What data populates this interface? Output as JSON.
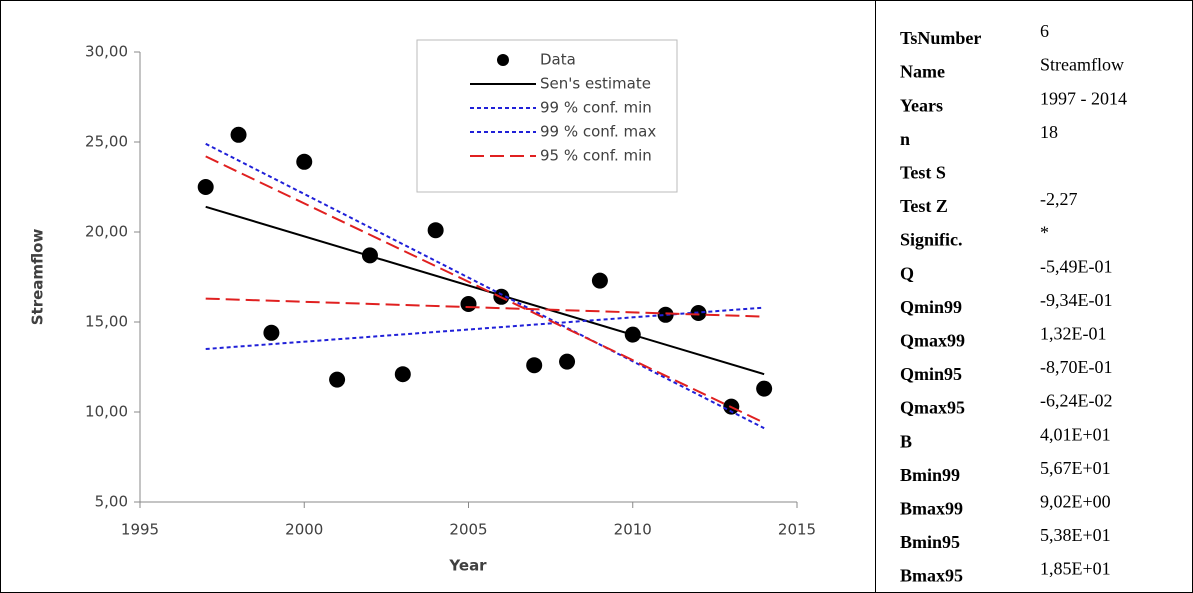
{
  "chart_data": {
    "type": "scatter",
    "x_label": "Year",
    "y_label": "Streamflow",
    "xlim": [
      1995,
      2015
    ],
    "xticks": [
      1995,
      2000,
      2005,
      2010,
      2015
    ],
    "ylim": [
      5,
      30
    ],
    "yticks": [
      {
        "value": 5,
        "label": "5,00"
      },
      {
        "value": 10,
        "label": "10,00"
      },
      {
        "value": 15,
        "label": "15,00"
      },
      {
        "value": 20,
        "label": "20,00"
      },
      {
        "value": 25,
        "label": "25,00"
      },
      {
        "value": 30,
        "label": "30,00"
      }
    ],
    "series": [
      {
        "name": "Data",
        "type": "scatter",
        "color": "#000000",
        "x": [
          1997,
          1998,
          1999,
          2000,
          2001,
          2002,
          2003,
          2004,
          2005,
          2006,
          2007,
          2008,
          2009,
          2010,
          2011,
          2012,
          2013,
          2014
        ],
        "values": [
          22.5,
          25.4,
          14.4,
          23.9,
          11.8,
          18.7,
          12.1,
          20.1,
          16.0,
          16.4,
          12.6,
          12.8,
          17.3,
          14.3,
          15.4,
          15.5,
          10.3,
          11.3
        ]
      },
      {
        "name": "Sen's estimate",
        "type": "line",
        "style": "solid",
        "color": "#000000",
        "x": [
          1997,
          2014
        ],
        "values": [
          21.4,
          12.1
        ]
      },
      {
        "name": "99 % conf. min",
        "type": "line",
        "style": "short-dash",
        "color": "#2020d8",
        "x": [
          1997,
          2014
        ],
        "values": [
          24.9,
          9.1
        ]
      },
      {
        "name": "99 % conf. max",
        "type": "line",
        "style": "short-dash",
        "color": "#2020d8",
        "x": [
          1997,
          2014
        ],
        "values": [
          13.5,
          15.8
        ]
      },
      {
        "name": "95 % conf. min",
        "type": "line",
        "style": "long-dash",
        "color": "#e02020",
        "x": [
          1997,
          2014
        ],
        "values": [
          24.2,
          9.4
        ]
      },
      {
        "type": "line",
        "style": "long-dash",
        "color": "#e02020",
        "x": [
          1997,
          2014
        ],
        "values": [
          16.3,
          15.3
        ]
      }
    ]
  },
  "table": {
    "rows": [
      [
        "TsNumber",
        "6"
      ],
      [
        "Name",
        "Streamflow"
      ],
      [
        "Years",
        "1997 - 2014"
      ],
      [
        "n",
        "18"
      ],
      [
        "Test S"
      ],
      [
        "Test Z",
        "-2,27"
      ],
      [
        "Signific.",
        "*"
      ],
      [
        "Q",
        "-5,49E-01"
      ],
      [
        "Qmin99",
        "-9,34E-01"
      ],
      [
        "Qmax99",
        "1,32E-01"
      ],
      [
        "Qmin95",
        "-8,70E-01"
      ],
      [
        "Qmax95",
        "-6,24E-02"
      ],
      [
        "B",
        "4,01E+01"
      ],
      [
        "Bmin99",
        "5,67E+01"
      ],
      [
        "Bmax99",
        "9,02E+00"
      ],
      [
        "Bmin95",
        "5,38E+01"
      ],
      [
        "Bmax95",
        "1,85E+01"
      ]
    ]
  }
}
